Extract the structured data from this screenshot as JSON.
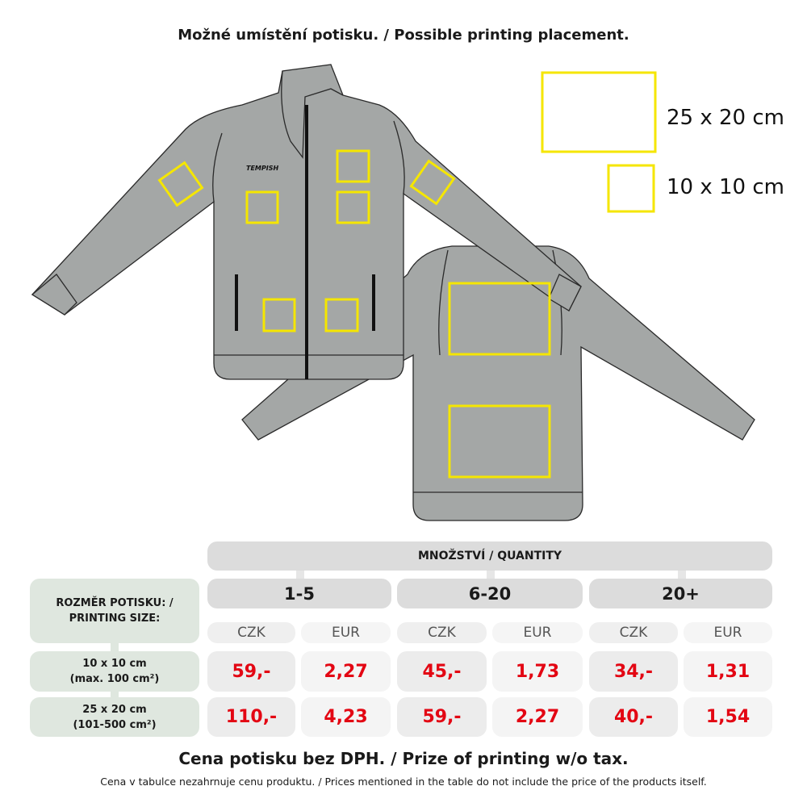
{
  "title": "Možné umístění potisku. / Possible printing placement.",
  "brand_logo": "TEMPISH",
  "legend": [
    {
      "label": "25 x 20 cm"
    },
    {
      "label": "10 x 10 cm"
    }
  ],
  "colors": {
    "placement": "#f5e600",
    "price": "#e30613",
    "jacket": "#a4a7a6",
    "size_header": "#dfe7df",
    "quantity_header": "#dcdcdc"
  },
  "table": {
    "quantity_header": "MNOŽSTVÍ / QUANTITY",
    "size_header": "ROZMĚR POTISKU: / PRINTING SIZE:",
    "groups": [
      {
        "label": "1-5",
        "currencies": [
          "CZK",
          "EUR"
        ]
      },
      {
        "label": "6-20",
        "currencies": [
          "CZK",
          "EUR"
        ]
      },
      {
        "label": "20+",
        "currencies": [
          "CZK",
          "EUR"
        ]
      }
    ],
    "rows": [
      {
        "size": "10 x 10 cm",
        "note": "(max. 100 cm²)",
        "prices": [
          "59,-",
          "2,27",
          "45,-",
          "1,73",
          "34,-",
          "1,31"
        ]
      },
      {
        "size": "25 x 20 cm",
        "note": "(101-500 cm²)",
        "prices": [
          "110,-",
          "4,23",
          "59,-",
          "2,27",
          "40,-",
          "1,54"
        ]
      }
    ]
  },
  "footer": {
    "main": "Cena potisku bez DPH. / Prize of printing w/o tax.",
    "note": "Cena v tabulce nezahrnuje cenu produktu. / Prices mentioned in the table do not include the price of the products itself."
  }
}
